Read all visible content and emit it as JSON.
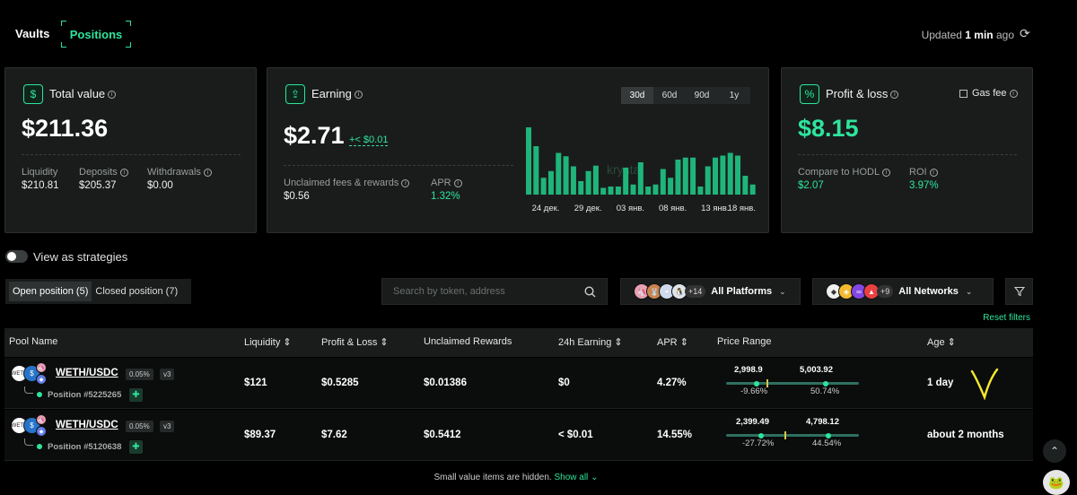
{
  "nav": {
    "vaults": "Vaults",
    "positions": "Positions"
  },
  "updated": {
    "prefix": "Updated",
    "time": "1 min",
    "suffix": "ago"
  },
  "total_value": {
    "title": "Total value",
    "value": "$211.36",
    "stats": [
      {
        "label": "Liquidity",
        "value": "$210.81"
      },
      {
        "label": "Deposits",
        "value": "$205.37"
      },
      {
        "label": "Withdrawals",
        "value": "$0.00"
      }
    ]
  },
  "earning": {
    "title": "Earning",
    "value": "$2.71",
    "delta": "+< $0.01",
    "unclaimed_label": "Unclaimed fees & rewards",
    "unclaimed_value": "$0.56",
    "apr_label": "APR",
    "apr_value": "1.32%",
    "periods": [
      "30d",
      "60d",
      "90d",
      "1y"
    ],
    "watermark": "krystal"
  },
  "chart_data": {
    "type": "bar",
    "title": "",
    "x_tick_labels": [
      "24 дек.",
      "29 дек.",
      "03 янв.",
      "08 янв.",
      "13 янв.",
      "18 янв."
    ],
    "values": [
      1.0,
      0.72,
      0.25,
      0.35,
      0.62,
      0.57,
      0.42,
      0.2,
      0.35,
      0.43,
      0.1,
      0.12,
      0.12,
      0.4,
      0.15,
      0.48,
      0.12,
      0.15,
      0.38,
      0.25,
      0.52,
      0.55,
      0.55,
      0.12,
      0.42,
      0.55,
      0.58,
      0.62,
      0.58,
      0.28,
      0.15
    ],
    "ylim": [
      0,
      1
    ],
    "color": "#1fb57a"
  },
  "pnl": {
    "title": "Profit & loss",
    "gas_fee_label": "Gas fee",
    "value": "$8.15",
    "stats": [
      {
        "label": "Compare to HODL",
        "value": "$2.07"
      },
      {
        "label": "ROI",
        "value": "3.97%"
      }
    ]
  },
  "view_strategies": "View as strategies",
  "position_tabs": {
    "open": "Open position (5)",
    "closed": "Closed position (7)"
  },
  "search": {
    "placeholder": "Search by token, address"
  },
  "platforms": {
    "plus": "+14",
    "label": "All Platforms"
  },
  "networks": {
    "plus": "+9",
    "label": "All Networks"
  },
  "reset_filters": "Reset filters",
  "table": {
    "headers": [
      "Pool Name",
      "Liquidity",
      "Profit & Loss",
      "Unclaimed Rewards",
      "24h Earning",
      "APR",
      "Price Range",
      "Age"
    ],
    "rows": [
      {
        "pair": "WETH/USDC",
        "fee": "0.05%",
        "version": "v3",
        "position": "Position #5225265",
        "liquidity": "$121",
        "pnl": "$0.5285",
        "unclaimed": "$0.01386",
        "earning24h": "$0",
        "apr": "4.27%",
        "range_low": "2,998.9",
        "range_high": "5,003.92",
        "pct_low": "-9.66%",
        "pct_high": "50.74%",
        "age": "1 day"
      },
      {
        "pair": "WETH/USDC",
        "fee": "0.05%",
        "version": "v3",
        "position": "Position #5120638",
        "liquidity": "$89.37",
        "pnl": "$7.62",
        "unclaimed": "$0.5412",
        "earning24h": "< $0.01",
        "apr": "14.55%",
        "range_low": "2,399.49",
        "range_high": "4,798.12",
        "pct_low": "-27.72%",
        "pct_high": "44.54%",
        "age": "about 2 months"
      }
    ]
  },
  "footer": {
    "text": "Small value items are hidden.",
    "link": "Show all"
  },
  "colors": {
    "accent": "#2ee59d",
    "bg": "#000000",
    "card": "#1a1c1c"
  }
}
